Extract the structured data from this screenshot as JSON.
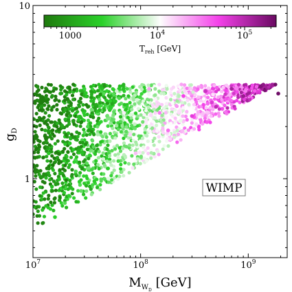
{
  "chart_data": {
    "type": "scatter",
    "title": "",
    "x_axis": {
      "label_main": "M",
      "label_sub": "W",
      "label_subsub": "D",
      "label_unit": " [GeV]",
      "scale": "log",
      "range": [
        10000000,
        2300000000
      ],
      "ticks": [
        {
          "value": 10000000,
          "mantissa": "10",
          "exp": "7"
        },
        {
          "value": 100000000,
          "mantissa": "10",
          "exp": "8"
        },
        {
          "value": 1000000000,
          "mantissa": "10",
          "exp": "9"
        }
      ]
    },
    "y_axis": {
      "label_main": "g",
      "label_sub": "D",
      "scale": "log",
      "range": [
        0.35,
        10
      ],
      "ticks": [
        {
          "value": 1,
          "text": "1"
        },
        {
          "value": 10,
          "text": "10"
        }
      ]
    },
    "colorbar": {
      "label_main": "T",
      "label_sub": "reh",
      "label_unit": " [GeV]",
      "scale": "log",
      "range": [
        500,
        230000
      ],
      "colormap": "PiYG_r",
      "colors": [
        "#1f7a0e",
        "#2bd12a",
        "#fdfdfd",
        "#f442ea",
        "#6a0a62"
      ],
      "ticks": [
        {
          "value": 1000,
          "mantissa": "1000",
          "exp": ""
        },
        {
          "value": 10000,
          "mantissa": "10",
          "exp": "4"
        },
        {
          "value": 100000,
          "mantissa": "10",
          "exp": "5"
        }
      ]
    },
    "annotation": "WIMP",
    "region": {
      "description_points": [
        {
          "x": 10000000,
          "y": 3.5
        },
        {
          "x": 2300000000,
          "y": 3.5
        },
        {
          "x": 10000000,
          "y": 0.5
        }
      ]
    },
    "series": [
      {
        "points": [
          {
            "x": 11000000,
            "y": 3.4,
            "c": 700
          },
          {
            "x": 12000000,
            "y": 2.6,
            "c": 900
          },
          {
            "x": 13000000,
            "y": 1.9,
            "c": 1200
          },
          {
            "x": 14000000,
            "y": 1.4,
            "c": 1800
          },
          {
            "x": 15000000,
            "y": 0.9,
            "c": 1600
          },
          {
            "x": 16000000,
            "y": 0.6,
            "c": 2200
          },
          {
            "x": 18000000,
            "y": 3.1,
            "c": 1000
          },
          {
            "x": 20000000,
            "y": 2.2,
            "c": 1400
          },
          {
            "x": 22000000,
            "y": 1.6,
            "c": 2000
          },
          {
            "x": 25000000,
            "y": 1.1,
            "c": 3000
          },
          {
            "x": 28000000,
            "y": 0.85,
            "c": 3500
          },
          {
            "x": 30000000,
            "y": 3.3,
            "c": 2500
          },
          {
            "x": 35000000,
            "y": 2.5,
            "c": 4000
          },
          {
            "x": 40000000,
            "y": 1.8,
            "c": 6000
          },
          {
            "x": 45000000,
            "y": 1.3,
            "c": 8000
          },
          {
            "x": 50000000,
            "y": 1.0,
            "c": 9000
          },
          {
            "x": 60000000,
            "y": 3.2,
            "c": 8000
          },
          {
            "x": 70000000,
            "y": 2.4,
            "c": 12000
          },
          {
            "x": 80000000,
            "y": 1.8,
            "c": 15000
          },
          {
            "x": 90000000,
            "y": 1.4,
            "c": 18000
          },
          {
            "x": 120000000,
            "y": 3.3,
            "c": 22000
          },
          {
            "x": 150000000,
            "y": 2.4,
            "c": 30000
          },
          {
            "x": 180000000,
            "y": 1.9,
            "c": 35000
          },
          {
            "x": 250000000,
            "y": 3.0,
            "c": 50000
          },
          {
            "x": 300000000,
            "y": 2.3,
            "c": 60000
          },
          {
            "x": 400000000,
            "y": 3.2,
            "c": 80000
          },
          {
            "x": 500000000,
            "y": 2.6,
            "c": 90000
          },
          {
            "x": 700000000,
            "y": 3.3,
            "c": 120000
          },
          {
            "x": 900000000,
            "y": 3.0,
            "c": 140000
          },
          {
            "x": 1300000000,
            "y": 3.4,
            "c": 180000
          },
          {
            "x": 1900000000,
            "y": 3.1,
            "c": 220000
          }
        ]
      }
    ]
  }
}
